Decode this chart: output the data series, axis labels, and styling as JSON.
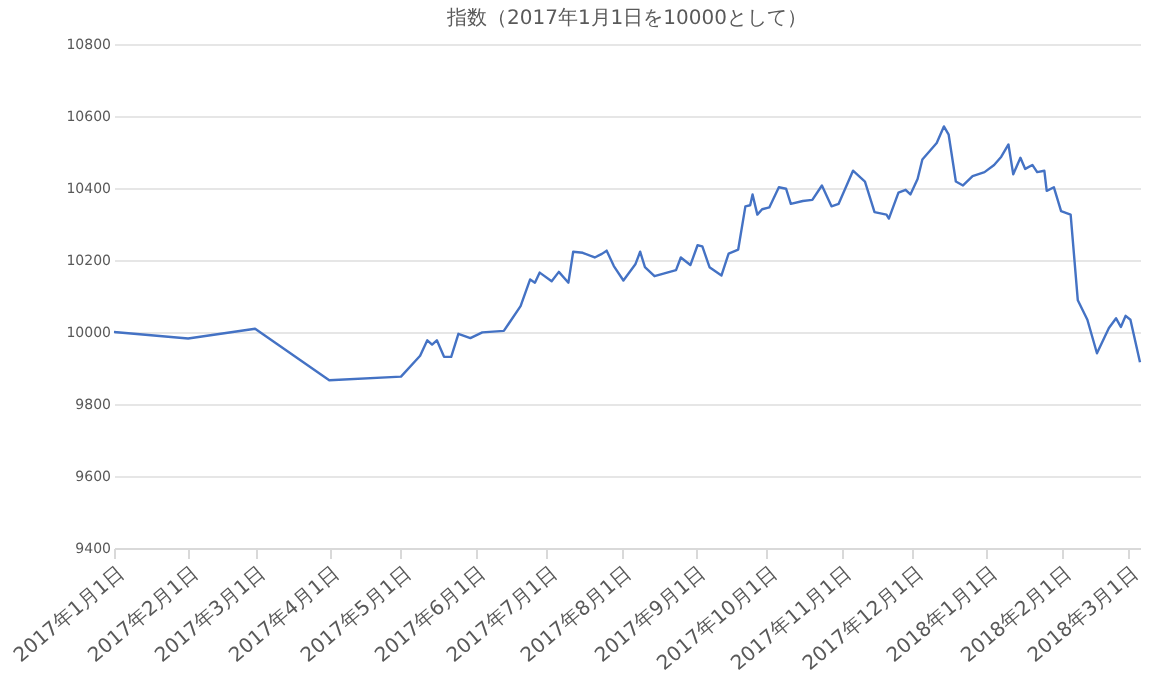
{
  "chart_data": {
    "type": "line",
    "title": "指数（2017年1月1日を10000として）",
    "x": [
      "2017-01-01",
      "2017-02-01",
      "2017-03-01",
      "2017-04-01",
      "2017-05-01",
      "2017-05-09",
      "2017-05-12",
      "2017-05-14",
      "2017-05-16",
      "2017-05-19",
      "2017-05-22",
      "2017-05-25",
      "2017-05-30",
      "2017-06-04",
      "2017-06-13",
      "2017-06-20",
      "2017-06-24",
      "2017-06-26",
      "2017-06-28",
      "2017-07-03",
      "2017-07-06",
      "2017-07-10",
      "2017-07-12",
      "2017-07-16",
      "2017-07-21",
      "2017-07-24",
      "2017-07-26",
      "2017-07-29",
      "2017-08-02",
      "2017-08-07",
      "2017-08-09",
      "2017-08-11",
      "2017-08-15",
      "2017-08-24",
      "2017-08-26",
      "2017-08-30",
      "2017-09-02",
      "2017-09-04",
      "2017-09-07",
      "2017-09-12",
      "2017-09-15",
      "2017-09-19",
      "2017-09-22",
      "2017-09-24",
      "2017-09-25",
      "2017-09-27",
      "2017-09-29",
      "2017-10-02",
      "2017-10-06",
      "2017-10-09",
      "2017-10-11",
      "2017-10-16",
      "2017-10-20",
      "2017-10-24",
      "2017-10-28",
      "2017-10-31",
      "2017-11-06",
      "2017-11-11",
      "2017-11-15",
      "2017-11-20",
      "2017-11-21",
      "2017-11-25",
      "2017-11-28",
      "2017-11-30",
      "2017-12-03",
      "2017-12-05",
      "2017-12-11",
      "2017-12-14",
      "2017-12-16",
      "2017-12-19",
      "2017-12-22",
      "2017-12-26",
      "2017-12-31",
      "2018-01-04",
      "2018-01-07",
      "2018-01-10",
      "2018-01-12",
      "2018-01-15",
      "2018-01-17",
      "2018-01-20",
      "2018-01-22",
      "2018-01-25",
      "2018-01-26",
      "2018-01-29",
      "2018-02-01",
      "2018-02-05",
      "2018-02-08",
      "2018-02-12",
      "2018-02-16",
      "2018-02-21",
      "2018-02-24",
      "2018-02-26",
      "2018-02-28",
      "2018-03-02",
      "2018-03-06"
    ],
    "series": [
      {
        "color": "#4472c4",
        "values": [
          10000,
          9982,
          10009,
          9866,
          9876,
          9934,
          9977,
          9965,
          9977,
          9931,
          9931,
          9995,
          9983,
          9999,
          10003,
          10072,
          10146,
          10137,
          10165,
          10141,
          10167,
          10137,
          10223,
          10220,
          10207,
          10217,
          10226,
          10183,
          10143,
          10188,
          10223,
          10180,
          10155,
          10172,
          10207,
          10186,
          10241,
          10238,
          10180,
          10157,
          10218,
          10229,
          10349,
          10352,
          10382,
          10326,
          10341,
          10346,
          10402,
          10398,
          10356,
          10364,
          10367,
          10407,
          10349,
          10356,
          10448,
          10418,
          10333,
          10326,
          10315,
          10387,
          10395,
          10382,
          10425,
          10479,
          10525,
          10571,
          10548,
          10418,
          10407,
          10433,
          10444,
          10464,
          10487,
          10521,
          10438,
          10484,
          10453,
          10464,
          10444,
          10448,
          10392,
          10402,
          10336,
          10326,
          10088,
          10034,
          9941,
          10011,
          10038,
          10014,
          10045,
          10034,
          9916
        ]
      }
    ],
    "xlim": [
      "2017-01-01",
      "2018-03-06"
    ],
    "xticks": [
      {
        "value": "2017-01-01",
        "label": "2017年1月1日"
      },
      {
        "value": "2017-02-01",
        "label": "2017年2月1日"
      },
      {
        "value": "2017-03-01",
        "label": "2017年3月1日"
      },
      {
        "value": "2017-04-01",
        "label": "2017年4月1日"
      },
      {
        "value": "2017-05-01",
        "label": "2017年5月1日"
      },
      {
        "value": "2017-06-01",
        "label": "2017年6月1日"
      },
      {
        "value": "2017-07-01",
        "label": "2017年7月1日"
      },
      {
        "value": "2017-08-01",
        "label": "2017年8月1日"
      },
      {
        "value": "2017-09-01",
        "label": "2017年9月1日"
      },
      {
        "value": "2017-10-01",
        "label": "2017年10月1日"
      },
      {
        "value": "2017-11-01",
        "label": "2017年11月1日"
      },
      {
        "value": "2017-12-01",
        "label": "2017年12月1日"
      },
      {
        "value": "2018-01-01",
        "label": "2018年1月1日"
      },
      {
        "value": "2018-02-01",
        "label": "2018年2月1日"
      },
      {
        "value": "2018-03-01",
        "label": "2018年3月1日"
      }
    ],
    "ylim": [
      9400,
      10800
    ],
    "yticks": [
      9400,
      9600,
      9800,
      10000,
      10200,
      10400,
      10600,
      10800
    ],
    "grid": "y",
    "marker": "none",
    "line_style": "solid"
  }
}
